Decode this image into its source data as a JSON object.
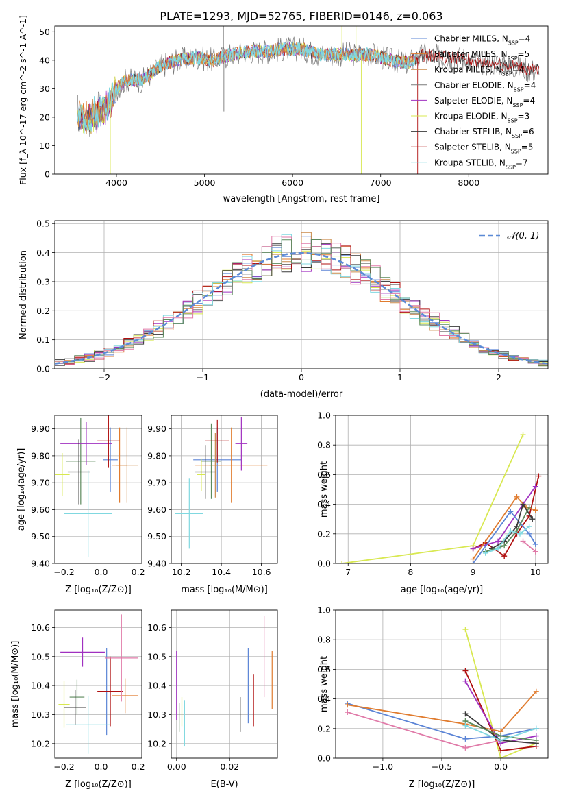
{
  "figure_title": "PLATE=1293, MJD=52765, FIBERID=0146, z=0.063",
  "colors": {
    "chabrier_miles": "#5b84d6",
    "salpeter_miles": "#e07b2e",
    "kroupa_miles": "#ca8a4a",
    "chabrier_elodie": "#7a7a7a",
    "salpeter_elodie": "#a030c0",
    "kroupa_elodie": "#d8e850",
    "chabrier_stelib": "#3a3a3a",
    "salpeter_stelib": "#b01010",
    "kroupa_stelib": "#80d8e0",
    "pink": "#e07aa8",
    "green": "#5c8a5c",
    "normal": "#5b8ad6"
  },
  "chart_data": [
    {
      "id": "spectrum",
      "type": "line",
      "title": "",
      "xlabel": "wavelength [Angstrom, rest frame]",
      "ylabel": "Flux [f_λ 10^-17 erg cm^-2 s^-1 A^-1]",
      "xlim": [
        3300,
        8900
      ],
      "ylim": [
        0,
        52
      ],
      "xticks": [
        4000,
        5000,
        6000,
        7000,
        8000
      ],
      "yticks": [
        0,
        10,
        20,
        30,
        40,
        50
      ],
      "grid": false,
      "legend_position": "top-right",
      "legend": [
        "Chabrier MILES, N_SSP=4",
        "Salpeter MILES, N_SSP=5",
        "Kroupa MILES, N_SSP=4",
        "Chabrier ELODIE, N_SSP=4",
        "Salpeter ELODIE, N_SSP=4",
        "Kroupa ELODIE, N_SSP=3",
        "Chabrier STELIB, N_SSP=6",
        "Salpeter STELIB, N_SSP=5",
        "Kroupa STELIB, N_SSP=7"
      ],
      "continuum": {
        "x": [
          3560,
          3700,
          3900,
          4000,
          4100,
          4300,
          4500,
          4700,
          4900,
          5100,
          5300,
          5500,
          5700,
          5900,
          6100,
          6300,
          6500,
          6700,
          6900,
          7100,
          7300,
          7500,
          7700,
          7900,
          8100,
          8300,
          8500,
          8800
        ],
        "y": [
          20,
          20,
          24,
          30,
          33,
          33,
          38,
          40,
          41,
          40,
          42,
          43,
          43,
          44,
          44,
          42,
          42,
          42,
          42,
          40,
          39,
          42,
          41,
          41,
          39,
          39,
          38,
          36
        ]
      },
      "spikes": [
        {
          "x": 3930,
          "y": 0
        },
        {
          "x": 5215,
          "y": 52
        },
        {
          "x": 5220,
          "y": 22
        },
        {
          "x": 6560,
          "y": 52
        },
        {
          "x": 6720,
          "y": 52
        },
        {
          "x": 6780,
          "y": 0
        },
        {
          "x": 7420,
          "y": 0
        }
      ]
    },
    {
      "id": "residuals",
      "type": "histogram",
      "xlabel": "(data-model)/error",
      "ylabel": "Normed distribution",
      "xlim": [
        -2.5,
        2.5
      ],
      "ylim": [
        0,
        0.51
      ],
      "xticks": [
        -2,
        -1,
        0,
        1,
        2
      ],
      "yticks": [
        0.0,
        0.1,
        0.2,
        0.3,
        0.4,
        0.5
      ],
      "grid": true,
      "legend_position": "top-right",
      "reference_curve": "N(0, 1)",
      "bin_width": 0.1
    },
    {
      "id": "age-vs-Z",
      "type": "scatter",
      "xlabel": "Z [log10(Z/Z_sun)]",
      "ylabel": "age [log10(age/yr)]",
      "xlim": [
        -0.25,
        0.22
      ],
      "ylim": [
        9.4,
        9.95
      ],
      "xticks": [
        -0.2,
        0.0,
        0.2
      ],
      "yticks": [
        9.4,
        9.5,
        9.6,
        9.7,
        9.8,
        9.9
      ],
      "grid": true,
      "points": [
        {
          "x": 0.05,
          "y": 9.785,
          "xerr": 0.04,
          "yerr": 0.12,
          "color": "chabrier_miles"
        },
        {
          "x": 0.1,
          "y": 9.765,
          "xerr": 0.04,
          "yerr": 0.14,
          "color": "salpeter_miles"
        },
        {
          "x": 0.14,
          "y": 9.765,
          "xerr": 0.06,
          "yerr": 0.14,
          "color": "kroupa_miles"
        },
        {
          "x": -0.11,
          "y": 9.78,
          "xerr": 0.08,
          "yerr": 0.16,
          "color": "green"
        },
        {
          "x": -0.08,
          "y": 9.845,
          "xerr": 0.14,
          "yerr": 0.08,
          "color": "salpeter_elodie"
        },
        {
          "x": -0.21,
          "y": 9.73,
          "xerr": 0.04,
          "yerr": 0.08,
          "color": "kroupa_elodie"
        },
        {
          "x": -0.12,
          "y": 9.74,
          "xerr": 0.06,
          "yerr": 0.12,
          "color": "chabrier_stelib"
        },
        {
          "x": 0.04,
          "y": 9.855,
          "xerr": 0.06,
          "yerr": 0.1,
          "color": "salpeter_stelib"
        },
        {
          "x": -0.07,
          "y": 9.585,
          "xerr": 0.13,
          "yerr": 0.16,
          "color": "kroupa_stelib"
        }
      ]
    },
    {
      "id": "age-vs-mass",
      "type": "scatter",
      "xlabel": "mass [log10(M/M_sun)]",
      "ylabel": "",
      "xlim": [
        10.15,
        10.68
      ],
      "ylim": [
        9.4,
        9.95
      ],
      "xticks": [
        10.2,
        10.4,
        10.6
      ],
      "yticks": [
        9.4,
        9.5,
        9.6,
        9.7,
        9.8,
        9.9
      ],
      "grid": true,
      "points": [
        {
          "x": 10.38,
          "y": 9.785,
          "xerr": 0.12,
          "yerr": 0.12,
          "color": "chabrier_miles"
        },
        {
          "x": 10.45,
          "y": 9.765,
          "xerr": 0.18,
          "yerr": 0.14,
          "color": "salpeter_miles"
        },
        {
          "x": 10.37,
          "y": 9.765,
          "xerr": 0.03,
          "yerr": 0.12,
          "color": "kroupa_miles"
        },
        {
          "x": 10.35,
          "y": 9.78,
          "xerr": 0.05,
          "yerr": 0.14,
          "color": "green"
        },
        {
          "x": 10.5,
          "y": 9.845,
          "xerr": 0.03,
          "yerr": 0.1,
          "color": "salpeter_elodie"
        },
        {
          "x": 10.3,
          "y": 9.73,
          "xerr": 0.02,
          "yerr": 0.06,
          "color": "kroupa_elodie"
        },
        {
          "x": 10.32,
          "y": 9.74,
          "xerr": 0.05,
          "yerr": 0.1,
          "color": "chabrier_stelib"
        },
        {
          "x": 10.38,
          "y": 9.855,
          "xerr": 0.06,
          "yerr": 0.08,
          "color": "salpeter_stelib"
        },
        {
          "x": 10.24,
          "y": 9.585,
          "xerr": 0.07,
          "yerr": 0.13,
          "color": "kroupa_stelib"
        }
      ]
    },
    {
      "id": "massweight-vs-age",
      "type": "line",
      "xlabel": "age [log10(age/yr)]",
      "ylabel": "mass weight",
      "xlim": [
        6.8,
        10.2
      ],
      "ylim": [
        0,
        1.0
      ],
      "xticks": [
        7,
        8,
        9,
        10
      ],
      "yticks": [
        0.0,
        0.2,
        0.4,
        0.6,
        0.8,
        1.0
      ],
      "grid": true,
      "series": [
        {
          "color": "kroupa_elodie",
          "x": [
            6.9,
            9.0,
            9.8
          ],
          "y": [
            0.0,
            0.12,
            0.87
          ]
        },
        {
          "color": "salpeter_stelib",
          "x": [
            9.0,
            9.2,
            9.5,
            9.7,
            9.9,
            10.05
          ],
          "y": [
            0.1,
            0.14,
            0.05,
            0.2,
            0.32,
            0.59
          ]
        },
        {
          "color": "salpeter_elodie",
          "x": [
            9.0,
            9.4,
            9.8,
            10.0
          ],
          "y": [
            0.1,
            0.15,
            0.4,
            0.52
          ]
        },
        {
          "color": "chabrier_miles",
          "x": [
            9.0,
            9.6,
            9.9,
            10.0
          ],
          "y": [
            0.0,
            0.35,
            0.2,
            0.13
          ]
        },
        {
          "color": "salpeter_miles",
          "x": [
            9.0,
            9.7,
            9.85,
            10.0
          ],
          "y": [
            0.03,
            0.45,
            0.38,
            0.36
          ]
        },
        {
          "color": "chabrier_stelib",
          "x": [
            9.3,
            9.5,
            9.7,
            9.8,
            9.95
          ],
          "y": [
            0.1,
            0.15,
            0.25,
            0.4,
            0.3
          ]
        },
        {
          "color": "green",
          "x": [
            9.2,
            9.5,
            9.7,
            9.9
          ],
          "y": [
            0.08,
            0.12,
            0.22,
            0.38
          ]
        },
        {
          "color": "kroupa_stelib",
          "x": [
            9.2,
            9.4,
            9.6,
            9.75,
            9.9
          ],
          "y": [
            0.07,
            0.1,
            0.22,
            0.2,
            0.25
          ]
        },
        {
          "color": "pink",
          "x": [
            9.8,
            10.0
          ],
          "y": [
            0.15,
            0.08
          ]
        }
      ]
    },
    {
      "id": "mass-vs-Z",
      "type": "scatter",
      "xlabel": "Z [log10(Z/Z_sun)]",
      "ylabel": "mass [log10(M/M_sun)]",
      "xlim": [
        -0.25,
        0.22
      ],
      "ylim": [
        10.15,
        10.66
      ],
      "xticks": [
        -0.2,
        0.0,
        0.2
      ],
      "yticks": [
        10.2,
        10.3,
        10.4,
        10.5,
        10.6
      ],
      "grid": true,
      "points": [
        {
          "x": 0.03,
          "y": 10.38,
          "xerr": 0.03,
          "yerr": 0.15,
          "color": "chabrier_miles"
        },
        {
          "x": 0.13,
          "y": 10.365,
          "xerr": 0.07,
          "yerr": 0.06,
          "color": "salpeter_miles"
        },
        {
          "x": -0.13,
          "y": 10.36,
          "xerr": 0.04,
          "yerr": 0.06,
          "color": "green"
        },
        {
          "x": -0.1,
          "y": 10.515,
          "xerr": 0.12,
          "yerr": 0.05,
          "color": "salpeter_elodie"
        },
        {
          "x": -0.2,
          "y": 10.335,
          "xerr": 0.03,
          "yerr": 0.08,
          "color": "kroupa_elodie"
        },
        {
          "x": -0.14,
          "y": 10.325,
          "xerr": 0.06,
          "yerr": 0.06,
          "color": "chabrier_stelib"
        },
        {
          "x": 0.05,
          "y": 10.38,
          "xerr": 0.07,
          "yerr": 0.12,
          "color": "salpeter_stelib"
        },
        {
          "x": -0.07,
          "y": 10.265,
          "xerr": 0.12,
          "yerr": 0.1,
          "color": "kroupa_stelib"
        },
        {
          "x": 0.11,
          "y": 10.495,
          "xerr": 0.09,
          "yerr": 0.15,
          "color": "pink"
        }
      ]
    },
    {
      "id": "mass-vs-EBV",
      "type": "scatter",
      "xlabel": "E(B-V)",
      "ylabel": "",
      "xlim": [
        -0.002,
        0.038
      ],
      "ylim": [
        10.15,
        10.66
      ],
      "xticks": [
        0.0,
        0.02
      ],
      "yticks": [
        10.2,
        10.3,
        10.4,
        10.5,
        10.6
      ],
      "grid": true,
      "points": [
        {
          "x": 0.0,
          "y": 10.4,
          "yerr": 0.12,
          "color": "salpeter_elodie"
        },
        {
          "x": 0.002,
          "y": 10.31,
          "yerr": 0.05,
          "color": "kroupa_elodie"
        },
        {
          "x": 0.001,
          "y": 10.29,
          "yerr": 0.05,
          "color": "green"
        },
        {
          "x": 0.003,
          "y": 10.27,
          "yerr": 0.08,
          "color": "kroupa_stelib"
        },
        {
          "x": 0.024,
          "y": 10.3,
          "yerr": 0.06,
          "color": "chabrier_stelib"
        },
        {
          "x": 0.027,
          "y": 10.4,
          "yerr": 0.13,
          "color": "chabrier_miles"
        },
        {
          "x": 0.029,
          "y": 10.35,
          "yerr": 0.09,
          "color": "salpeter_stelib"
        },
        {
          "x": 0.033,
          "y": 10.5,
          "yerr": 0.14,
          "color": "pink"
        },
        {
          "x": 0.036,
          "y": 10.42,
          "yerr": 0.1,
          "color": "salpeter_miles"
        }
      ]
    },
    {
      "id": "massweight-vs-Z",
      "type": "line",
      "xlabel": "Z [log10(Z/Z_sun)]",
      "ylabel": "mass weight",
      "xlim": [
        -1.4,
        0.4
      ],
      "ylim": [
        0,
        1.0
      ],
      "xticks": [
        -1.0,
        -0.5,
        0.0
      ],
      "yticks": [
        0.0,
        0.2,
        0.4,
        0.6,
        0.8,
        1.0
      ],
      "grid": true,
      "series": [
        {
          "color": "kroupa_elodie",
          "x": [
            -0.3,
            0.0,
            0.3
          ],
          "y": [
            0.87,
            0.0,
            0.1
          ]
        },
        {
          "color": "salpeter_stelib",
          "x": [
            -0.3,
            0.0,
            0.3
          ],
          "y": [
            0.59,
            0.05,
            0.08
          ]
        },
        {
          "color": "salpeter_elodie",
          "x": [
            -0.3,
            0.0,
            0.3
          ],
          "y": [
            0.52,
            0.1,
            0.15
          ]
        },
        {
          "color": "chabrier_miles",
          "x": [
            -1.3,
            -0.3,
            0.0,
            0.3
          ],
          "y": [
            0.37,
            0.13,
            0.15,
            0.2
          ]
        },
        {
          "color": "salpeter_miles",
          "x": [
            -1.3,
            -0.3,
            0.0,
            0.3
          ],
          "y": [
            0.36,
            0.23,
            0.18,
            0.45
          ]
        },
        {
          "color": "pink",
          "x": [
            -1.3,
            -0.3,
            0.0,
            0.3
          ],
          "y": [
            0.31,
            0.07,
            0.12,
            0.1
          ]
        },
        {
          "color": "chabrier_stelib",
          "x": [
            -0.3,
            0.0,
            0.3
          ],
          "y": [
            0.3,
            0.12,
            0.1
          ]
        },
        {
          "color": "green",
          "x": [
            -0.3,
            0.0,
            0.3
          ],
          "y": [
            0.25,
            0.15,
            0.12
          ]
        },
        {
          "color": "kroupa_stelib",
          "x": [
            -0.3,
            0.0,
            0.3
          ],
          "y": [
            0.22,
            0.12,
            0.2
          ]
        }
      ]
    }
  ]
}
